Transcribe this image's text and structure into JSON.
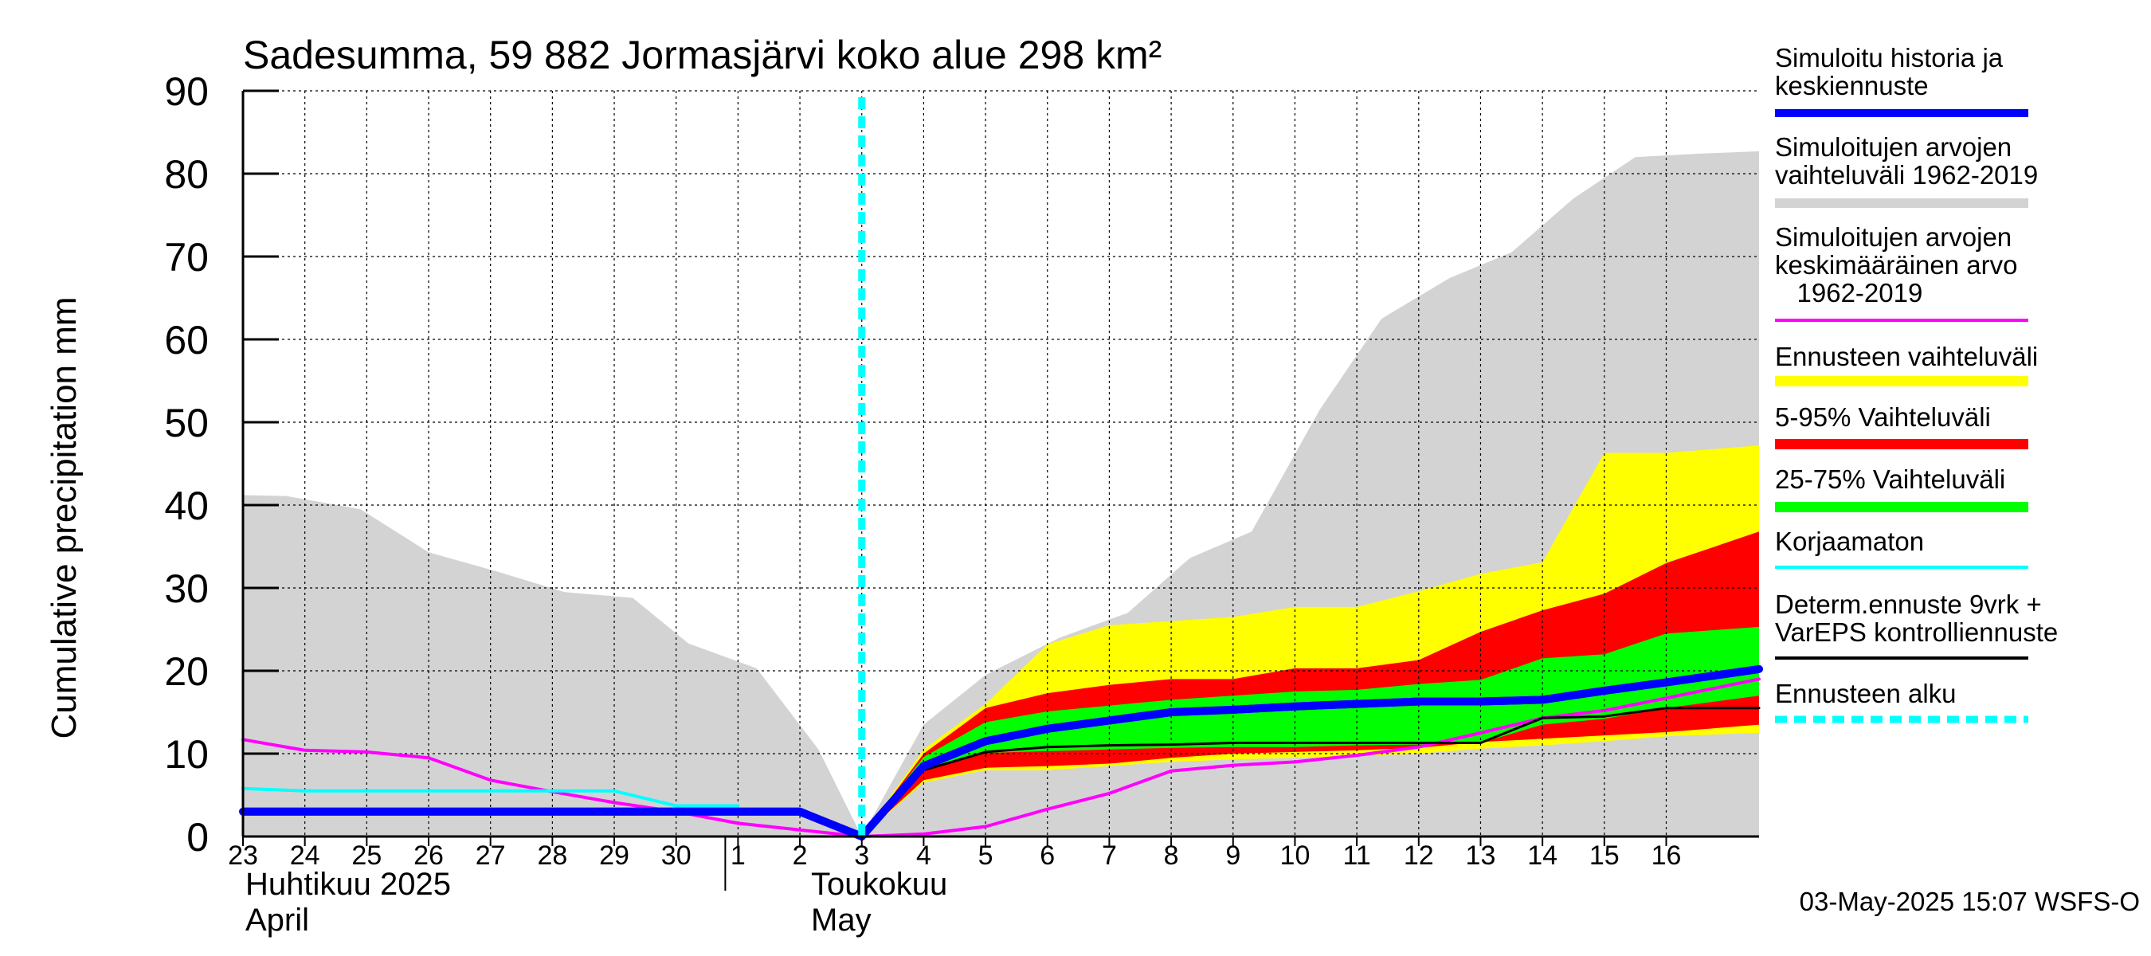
{
  "chart_data": {
    "type": "area",
    "title": "Sadesumma, 59 882 Jormasjärvi koko alue 298 km²",
    "ylabel": "Cumulative precipitation   mm",
    "ylim": [
      0,
      90
    ],
    "yticks": [
      "0",
      "10",
      "20",
      "30",
      "40",
      "50",
      "60",
      "70",
      "80",
      "90"
    ],
    "xlim": [
      0,
      24.5
    ],
    "day_ticks": [
      {
        "x": 0,
        "label": "23"
      },
      {
        "x": 1,
        "label": "24"
      },
      {
        "x": 2,
        "label": "25"
      },
      {
        "x": 3,
        "label": "26"
      },
      {
        "x": 4,
        "label": "27"
      },
      {
        "x": 5,
        "label": "28"
      },
      {
        "x": 6,
        "label": "29"
      },
      {
        "x": 7,
        "label": "30"
      },
      {
        "x": 8,
        "label": "1"
      },
      {
        "x": 9,
        "label": "2"
      },
      {
        "x": 10,
        "label": "3"
      },
      {
        "x": 11,
        "label": "4"
      },
      {
        "x": 12,
        "label": "5"
      },
      {
        "x": 13,
        "label": "6"
      },
      {
        "x": 14,
        "label": "7"
      },
      {
        "x": 15,
        "label": "8"
      },
      {
        "x": 16,
        "label": "9"
      },
      {
        "x": 17,
        "label": "10"
      },
      {
        "x": 18,
        "label": "11"
      },
      {
        "x": 19,
        "label": "12"
      },
      {
        "x": 20,
        "label": "13"
      },
      {
        "x": 21,
        "label": "14"
      },
      {
        "x": 22,
        "label": "15"
      },
      {
        "x": 23,
        "label": "16"
      }
    ],
    "month_labels": {
      "april_fi": "Huhtikuu  2025",
      "april_en": "April",
      "may_fi": "Toukokuu",
      "may_en": "May"
    },
    "forecast_start_x": 10,
    "month_boundary_x": 8,
    "bands": {
      "historical_range": {
        "x": [
          0,
          0.7,
          1.9,
          3,
          4.1,
          5.2,
          6.3,
          7.2,
          8.3,
          9.3,
          10,
          11,
          12,
          13.2,
          14.3,
          15.3,
          16.3,
          17.4,
          18.4,
          19.5,
          20.5,
          21.5,
          22.5,
          23.5,
          24.5
        ],
        "upper": [
          41.2,
          41.1,
          39.5,
          34.3,
          32,
          29.5,
          28.8,
          23.3,
          20.3,
          10.5,
          0,
          13.5,
          19.5,
          24,
          27,
          33.6,
          36.8,
          51.5,
          62.5,
          67.4,
          70.5,
          77,
          82,
          82.4,
          82.7
        ],
        "lower": [
          0,
          0,
          0,
          0,
          0,
          0,
          0,
          0,
          0,
          0,
          0,
          0,
          0,
          0,
          0,
          0,
          0,
          0,
          0,
          0,
          0,
          0,
          0,
          0,
          0
        ]
      },
      "forecast_range": {
        "x": [
          10,
          11,
          12,
          13,
          14,
          15,
          16,
          17,
          18,
          19,
          20,
          21,
          22,
          23,
          24.5
        ],
        "upper": [
          0,
          10.5,
          16,
          23.2,
          25.5,
          26,
          26.5,
          27.7,
          27.7,
          29.6,
          31.7,
          33.1,
          46.3,
          46.3,
          47.2
        ],
        "lower": [
          0,
          6.5,
          8,
          8,
          8.5,
          9,
          9.3,
          9.5,
          9.7,
          10,
          10.6,
          11,
          11.5,
          12.1,
          12.5
        ]
      },
      "range_5_95": {
        "x": [
          10,
          11,
          12,
          13,
          14,
          15,
          16,
          17,
          18,
          19,
          20,
          21,
          22,
          23,
          24.5
        ],
        "upper": [
          0,
          10,
          15.5,
          17.3,
          18.3,
          19,
          19,
          20.3,
          20.3,
          21.3,
          24.7,
          27.3,
          29.3,
          33,
          36.8
        ],
        "lower": [
          0,
          6.8,
          8.3,
          8.5,
          8.8,
          9.5,
          10,
          10.2,
          10.4,
          10.7,
          11.4,
          11.8,
          12.2,
          12.6,
          13.5
        ]
      },
      "range_25_75": {
        "x": [
          10,
          11,
          12,
          13,
          14,
          15,
          16,
          17,
          18,
          19,
          20,
          21,
          22,
          23,
          24.5
        ],
        "upper": [
          0,
          9.6,
          13.8,
          15.1,
          15.8,
          16.5,
          17,
          17.5,
          17.7,
          18.4,
          18.9,
          21.5,
          22,
          24.5,
          25.3
        ],
        "lower": [
          0,
          8.3,
          10.1,
          10.3,
          10.5,
          10.7,
          10.8,
          10.8,
          11,
          11.1,
          11.3,
          13.5,
          14.2,
          15.5,
          17
        ]
      }
    },
    "series": [
      {
        "name": "Simuloitu historia ja keskiennuste",
        "color": "#0000ff",
        "x": [
          0,
          1,
          2,
          3,
          4,
          5,
          6,
          7,
          8,
          9,
          10,
          11,
          12,
          13,
          14,
          15,
          16,
          17,
          18,
          19,
          20,
          21,
          22,
          23,
          24.5
        ],
        "values": [
          3,
          3,
          3,
          3,
          3,
          3,
          3,
          3,
          3,
          3,
          0,
          8.5,
          11.5,
          13,
          14,
          15,
          15.3,
          15.7,
          16,
          16.3,
          16.3,
          16.5,
          17.6,
          18.6,
          20.2
        ]
      },
      {
        "name": "Simuloitujen arvojen keskimääräinen arvo 1962-2019",
        "color": "#ff00ff",
        "x": [
          0,
          1,
          2,
          3,
          4,
          5,
          6,
          7,
          8,
          9,
          10,
          11,
          12,
          13,
          14,
          15,
          16,
          17,
          18,
          19,
          20,
          21,
          22,
          23,
          24.5
        ],
        "values": [
          11.7,
          10.4,
          10.2,
          9.5,
          6.8,
          5.4,
          4.1,
          3,
          1.6,
          0.8,
          0,
          0.3,
          1.2,
          3.3,
          5.2,
          7.9,
          8.6,
          9,
          9.8,
          10.8,
          12.5,
          14.3,
          15.2,
          16.7,
          19
        ]
      },
      {
        "name": "Korjaamaton",
        "color": "#00ffff",
        "x": [
          0,
          1,
          2,
          3,
          4,
          5,
          6,
          7,
          8
        ],
        "values": [
          5.8,
          5.5,
          5.5,
          5.5,
          5.5,
          5.5,
          5.5,
          3.7,
          3.7
        ]
      },
      {
        "name": "Determ.ennuste 9vrk + VarEPS kontrolliennuste",
        "color": "#000000",
        "x": [
          10,
          11,
          12,
          13,
          14,
          15,
          16,
          17,
          18,
          19,
          20,
          21,
          22,
          23,
          24.5
        ],
        "values": [
          0,
          8,
          10.2,
          10.8,
          11,
          11.1,
          11.3,
          11.3,
          11.3,
          11.3,
          11.3,
          14.3,
          14.5,
          15.5,
          15.5
        ]
      }
    ],
    "legend": [
      {
        "label": "Simuloitu historia ja keskiennuste",
        "color": "#0000ff",
        "style": "line"
      },
      {
        "label": "Simuloitujen arvojen vaihteluväli 1962-2019",
        "color": "#d3d3d3",
        "style": "band"
      },
      {
        "label": "Simuloitujen arvojen keskimääräinen arvo 1962-2019",
        "color": "#ff00ff",
        "style": "thin"
      },
      {
        "label": "Ennusteen vaihteluväli",
        "color": "#ffff00",
        "style": "band"
      },
      {
        "label": "5-95% Vaihteluväli",
        "color": "#ff0000",
        "style": "band"
      },
      {
        "label": "25-75% Vaihteluväli",
        "color": "#00ff00",
        "style": "band"
      },
      {
        "label": "Korjaamaton",
        "color": "#00ffff",
        "style": "thin"
      },
      {
        "label": "Determ.ennuste 9vrk + VarEPS kontrolliennuste",
        "color": "#000000",
        "style": "thin"
      },
      {
        "label": "Ennusteen alku",
        "color": "#00ffff",
        "style": "dashed"
      }
    ]
  },
  "legend_text": {
    "l1a": "Simuloitu historia ja",
    "l1b": "keskiennuste",
    "l2a": "Simuloitujen arvojen",
    "l2b": "vaihteluväli 1962-2019",
    "l3a": "Simuloitujen arvojen",
    "l3b": "keskimääräinen arvo",
    "l3c": "   1962-2019",
    "l4": "Ennusteen vaihteluväli",
    "l5": "5-95% Vaihteluväli",
    "l6": "25-75% Vaihteluväli",
    "l7": "Korjaamaton",
    "l8a": "Determ.ennuste 9vrk +",
    "l8b": "VarEPS kontrolliennuste",
    "l9": "Ennusteen alku"
  },
  "footer": "03-May-2025 15:07 WSFS-O"
}
